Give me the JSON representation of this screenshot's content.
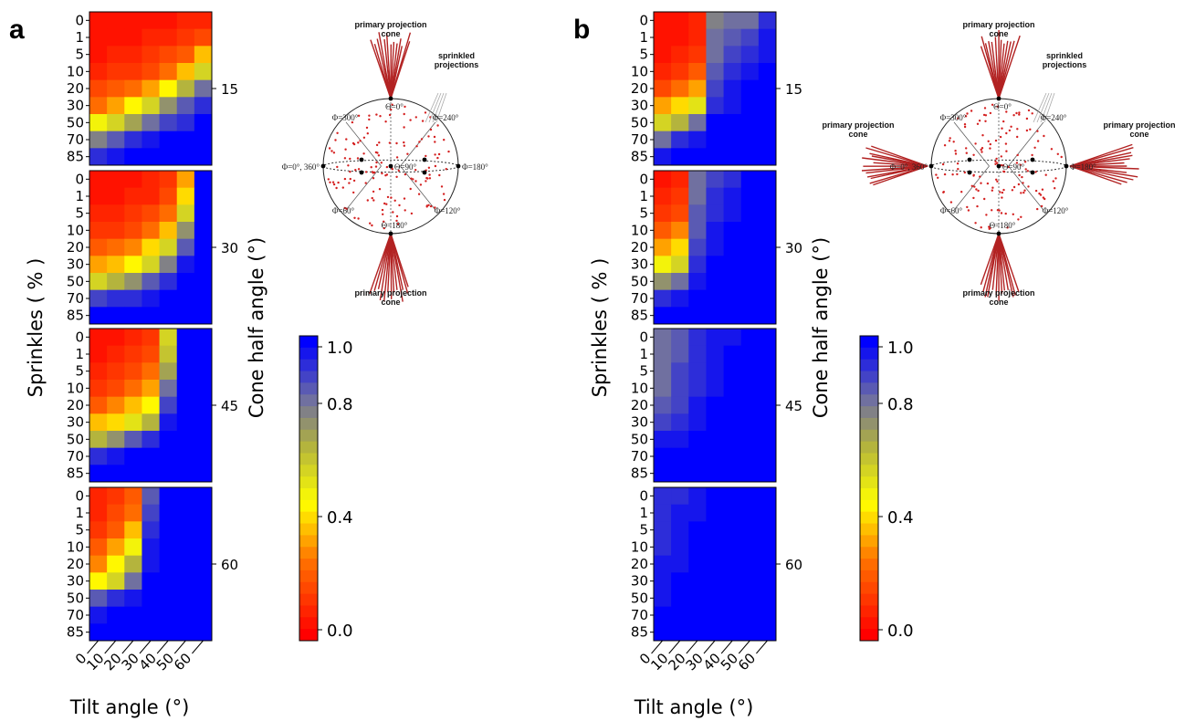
{
  "panels": [
    {
      "label": "a",
      "xlabel": "Tilt angle (°)",
      "ylabel": "Sprinkles ( % )",
      "zlabel": "Cone half angle (°)"
    },
    {
      "label": "b",
      "xlabel": "Tilt angle (°)",
      "ylabel": "Sprinkles ( % )",
      "zlabel": "Cone half angle (°)"
    }
  ],
  "chart_data": [
    {
      "type": "heatmap",
      "panel": "a",
      "x_categories": [
        "0",
        "10",
        "20",
        "30",
        "40",
        "50",
        "60"
      ],
      "y_categories": [
        "0",
        "1",
        "5",
        "10",
        "20",
        "30",
        "50",
        "70",
        "85"
      ],
      "facets": [
        {
          "label": "15",
          "values": [
            [
              0.02,
              0.02,
              0.03,
              0.04,
              0.05,
              0.06,
              0.08
            ],
            [
              0.03,
              0.04,
              0.05,
              0.07,
              0.09,
              0.11,
              0.15
            ],
            [
              0.05,
              0.06,
              0.08,
              0.1,
              0.14,
              0.2,
              0.35
            ],
            [
              0.08,
              0.1,
              0.13,
              0.17,
              0.24,
              0.35,
              0.55
            ],
            [
              0.14,
              0.18,
              0.24,
              0.32,
              0.45,
              0.62,
              0.78
            ],
            [
              0.25,
              0.32,
              0.42,
              0.55,
              0.7,
              0.82,
              0.9
            ],
            [
              0.48,
              0.58,
              0.68,
              0.78,
              0.86,
              0.93,
              0.98
            ],
            [
              0.75,
              0.82,
              0.9,
              0.95,
              0.98,
              1.0,
              1.0
            ],
            [
              0.93,
              0.96,
              0.99,
              1.0,
              1.0,
              1.0,
              1.0
            ]
          ]
        },
        {
          "label": "30",
          "values": [
            [
              0.03,
              0.04,
              0.05,
              0.06,
              0.1,
              0.3,
              1.0
            ],
            [
              0.04,
              0.05,
              0.06,
              0.08,
              0.14,
              0.4,
              1.0
            ],
            [
              0.07,
              0.08,
              0.1,
              0.14,
              0.24,
              0.55,
              1.0
            ],
            [
              0.1,
              0.12,
              0.16,
              0.22,
              0.36,
              0.7,
              1.0
            ],
            [
              0.18,
              0.22,
              0.28,
              0.38,
              0.55,
              0.85,
              1.0
            ],
            [
              0.3,
              0.36,
              0.44,
              0.56,
              0.75,
              0.95,
              1.0
            ],
            [
              0.55,
              0.62,
              0.72,
              0.82,
              0.93,
              1.0,
              1.0
            ],
            [
              0.88,
              0.9,
              0.93,
              0.97,
              1.0,
              1.0,
              1.0
            ],
            [
              0.98,
              0.99,
              1.0,
              1.0,
              1.0,
              1.0,
              1.0
            ]
          ]
        },
        {
          "label": "45",
          "values": [
            [
              0.04,
              0.05,
              0.07,
              0.12,
              0.55,
              1.0,
              1.0
            ],
            [
              0.05,
              0.07,
              0.1,
              0.16,
              0.6,
              1.0,
              1.0
            ],
            [
              0.08,
              0.1,
              0.14,
              0.22,
              0.68,
              1.0,
              1.0
            ],
            [
              0.12,
              0.16,
              0.22,
              0.32,
              0.78,
              1.0,
              1.0
            ],
            [
              0.2,
              0.26,
              0.34,
              0.45,
              0.88,
              1.0,
              1.0
            ],
            [
              0.34,
              0.4,
              0.5,
              0.62,
              0.95,
              1.0,
              1.0
            ],
            [
              0.62,
              0.72,
              0.82,
              0.92,
              1.0,
              1.0,
              1.0
            ],
            [
              0.92,
              0.95,
              0.98,
              1.0,
              1.0,
              1.0,
              1.0
            ],
            [
              0.99,
              1.0,
              1.0,
              1.0,
              1.0,
              1.0,
              1.0
            ]
          ]
        },
        {
          "label": "60",
          "values": [
            [
              0.06,
              0.1,
              0.18,
              0.85,
              1.0,
              1.0,
              1.0
            ],
            [
              0.08,
              0.14,
              0.24,
              0.88,
              1.0,
              1.0,
              1.0
            ],
            [
              0.12,
              0.2,
              0.34,
              0.92,
              1.0,
              1.0,
              1.0
            ],
            [
              0.18,
              0.3,
              0.46,
              0.95,
              1.0,
              1.0,
              1.0
            ],
            [
              0.28,
              0.42,
              0.62,
              0.97,
              1.0,
              1.0,
              1.0
            ],
            [
              0.44,
              0.58,
              0.78,
              0.99,
              1.0,
              1.0,
              1.0
            ],
            [
              0.84,
              0.9,
              0.96,
              1.0,
              1.0,
              1.0,
              1.0
            ],
            [
              0.97,
              0.98,
              1.0,
              1.0,
              1.0,
              1.0,
              1.0
            ],
            [
              1.0,
              1.0,
              1.0,
              1.0,
              1.0,
              1.0,
              1.0
            ]
          ]
        }
      ],
      "colorbar": {
        "ticks": [
          "0.0",
          "0.4",
          "0.8",
          "1.0"
        ],
        "range": [
          0,
          1
        ]
      }
    },
    {
      "type": "heatmap",
      "panel": "b",
      "x_categories": [
        "0",
        "10",
        "20",
        "30",
        "40",
        "50",
        "60"
      ],
      "y_categories": [
        "0",
        "1",
        "5",
        "10",
        "20",
        "30",
        "50",
        "70",
        "85"
      ],
      "facets": [
        {
          "label": "15",
          "values": [
            [
              0.02,
              0.03,
              0.06,
              0.75,
              0.78,
              0.8,
              0.9
            ],
            [
              0.03,
              0.04,
              0.08,
              0.78,
              0.82,
              0.86,
              0.94
            ],
            [
              0.05,
              0.07,
              0.12,
              0.8,
              0.86,
              0.9,
              0.97
            ],
            [
              0.09,
              0.12,
              0.2,
              0.82,
              0.9,
              0.95,
              1.0
            ],
            [
              0.16,
              0.22,
              0.32,
              0.86,
              0.94,
              0.98,
              1.0
            ],
            [
              0.3,
              0.38,
              0.5,
              0.92,
              0.97,
              1.0,
              1.0
            ],
            [
              0.55,
              0.65,
              0.8,
              0.98,
              1.0,
              1.0,
              1.0
            ],
            [
              0.8,
              0.9,
              0.96,
              1.0,
              1.0,
              1.0,
              1.0
            ],
            [
              0.96,
              0.98,
              1.0,
              1.0,
              1.0,
              1.0,
              1.0
            ]
          ]
        },
        {
          "label": "30",
          "values": [
            [
              0.04,
              0.08,
              0.78,
              0.88,
              0.92,
              1.0,
              1.0
            ],
            [
              0.06,
              0.1,
              0.8,
              0.9,
              0.94,
              1.0,
              1.0
            ],
            [
              0.1,
              0.16,
              0.82,
              0.92,
              0.96,
              1.0,
              1.0
            ],
            [
              0.18,
              0.26,
              0.85,
              0.94,
              0.98,
              1.0,
              1.0
            ],
            [
              0.3,
              0.4,
              0.88,
              0.96,
              1.0,
              1.0,
              1.0
            ],
            [
              0.48,
              0.58,
              0.92,
              0.98,
              1.0,
              1.0,
              1.0
            ],
            [
              0.72,
              0.8,
              0.96,
              1.0,
              1.0,
              1.0,
              1.0
            ],
            [
              0.92,
              0.95,
              0.99,
              1.0,
              1.0,
              1.0,
              1.0
            ],
            [
              0.99,
              1.0,
              1.0,
              1.0,
              1.0,
              1.0,
              1.0
            ]
          ]
        },
        {
          "label": "45",
          "values": [
            [
              0.78,
              0.84,
              0.9,
              0.94,
              0.97,
              1.0,
              1.0
            ],
            [
              0.78,
              0.85,
              0.91,
              0.95,
              0.98,
              1.0,
              1.0
            ],
            [
              0.79,
              0.86,
              0.92,
              0.96,
              0.99,
              1.0,
              1.0
            ],
            [
              0.8,
              0.87,
              0.93,
              0.97,
              1.0,
              1.0,
              1.0
            ],
            [
              0.84,
              0.89,
              0.95,
              0.98,
              1.0,
              1.0,
              1.0
            ],
            [
              0.88,
              0.92,
              0.97,
              1.0,
              1.0,
              1.0,
              1.0
            ],
            [
              0.94,
              0.96,
              0.99,
              1.0,
              1.0,
              1.0,
              1.0
            ],
            [
              0.99,
              1.0,
              1.0,
              1.0,
              1.0,
              1.0,
              1.0
            ],
            [
              1.0,
              1.0,
              1.0,
              1.0,
              1.0,
              1.0,
              1.0
            ]
          ]
        },
        {
          "label": "60",
          "values": [
            [
              0.9,
              0.93,
              0.95,
              0.98,
              1.0,
              1.0,
              1.0
            ],
            [
              0.91,
              0.94,
              0.96,
              0.99,
              1.0,
              1.0,
              1.0
            ],
            [
              0.92,
              0.95,
              0.98,
              1.0,
              1.0,
              1.0,
              1.0
            ],
            [
              0.93,
              0.96,
              0.99,
              1.0,
              1.0,
              1.0,
              1.0
            ],
            [
              0.94,
              0.97,
              1.0,
              1.0,
              1.0,
              1.0,
              1.0
            ],
            [
              0.95,
              0.98,
              1.0,
              1.0,
              1.0,
              1.0,
              1.0
            ],
            [
              0.96,
              0.99,
              1.0,
              1.0,
              1.0,
              1.0,
              1.0
            ],
            [
              0.98,
              1.0,
              1.0,
              1.0,
              1.0,
              1.0,
              1.0
            ],
            [
              1.0,
              1.0,
              1.0,
              1.0,
              1.0,
              1.0,
              1.0
            ]
          ]
        }
      ],
      "colorbar": {
        "ticks": [
          "0.0",
          "0.4",
          "0.8",
          "1.0"
        ],
        "range": [
          0,
          1
        ]
      }
    }
  ],
  "diagrams": [
    {
      "panel": "a",
      "cone_title": "primary projection cone",
      "cone_title_lines": [
        "primary projection",
        "cone"
      ],
      "sprinkled_lines": [
        "sprinkled",
        "projections"
      ],
      "labels": {
        "theta0": "Θ=0°",
        "theta90": "Θ=90°",
        "theta180": "Θ=180°",
        "phi0": "Φ=0°, 360°",
        "phi60": "Φ=60°",
        "phi120": "Φ=120°",
        "phi180": "Φ=180°",
        "phi240": "Φ=240°",
        "phi300": "Φ=300°"
      },
      "cone_colors": {
        "lines": "#b22222",
        "dots": "#d42020"
      }
    },
    {
      "panel": "b",
      "cone_title": "primary projection cone",
      "cone_title_lines": [
        "primary projection",
        "cone"
      ],
      "sprinkled_lines": [
        "sprinkled",
        "projections"
      ],
      "labels": {
        "theta0": "Θ=0°",
        "theta90": "Θ=90°",
        "theta180": "Θ=180°",
        "phi0": "Φ=0°, 360°",
        "phi60": "Φ=60°",
        "phi120": "Φ=120°",
        "phi180": "Φ=180°",
        "phi240": "Φ=240°",
        "phi300": "Φ=300°"
      },
      "cone_colors": {
        "lines": "#b22222",
        "dots": "#d42020"
      }
    }
  ]
}
